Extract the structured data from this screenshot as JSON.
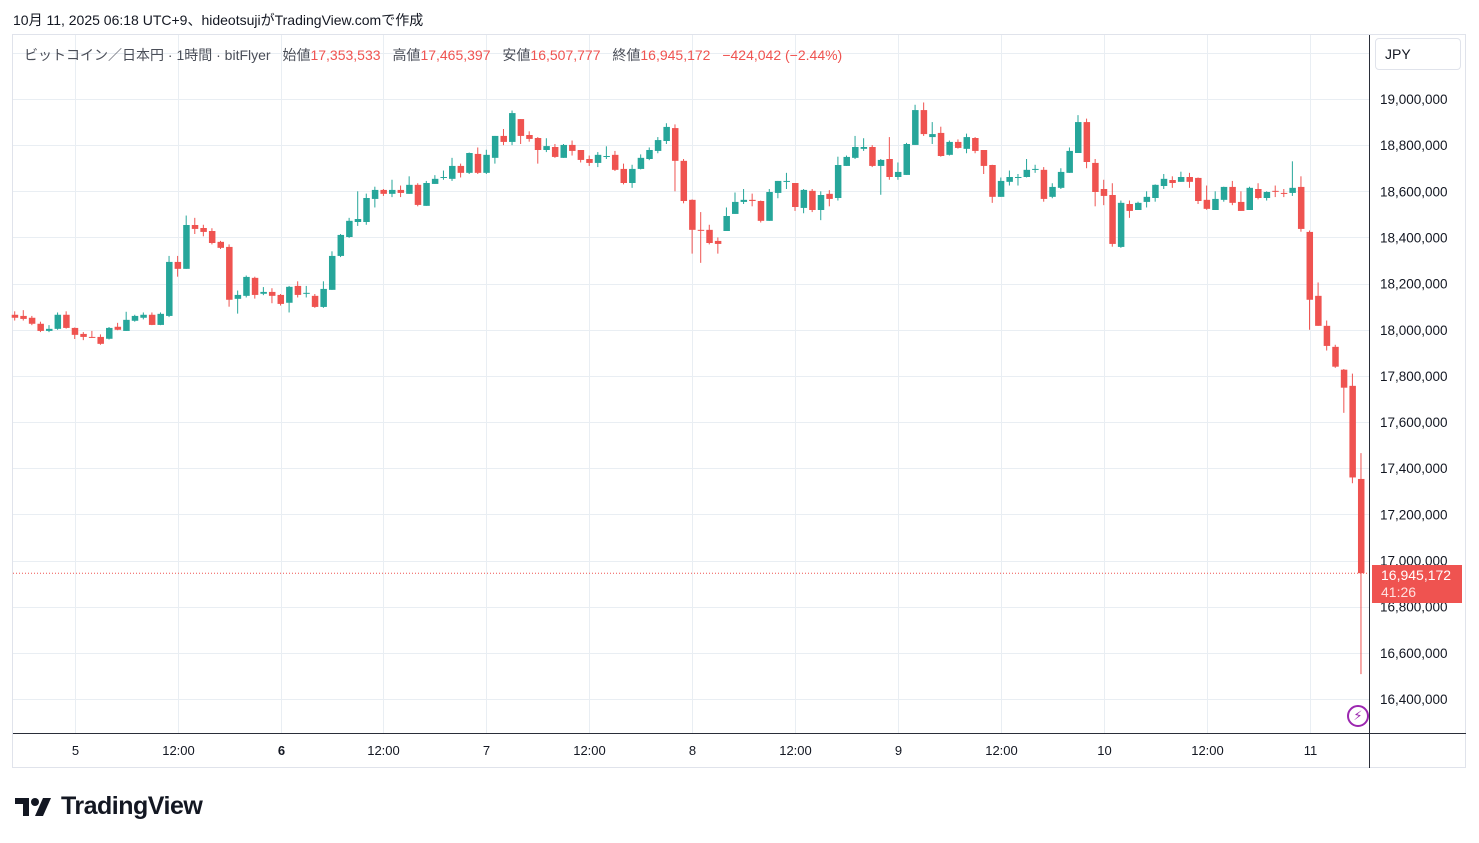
{
  "caption": "10月 11, 2025 06:18 UTC+9、hideotsujiがTradingView.comで作成",
  "legend": {
    "symbol": "ビットコイン／日本円 · 1時間 · bitFlyer",
    "open_label": "始値",
    "open": "17,353,533",
    "high_label": "高値",
    "high": "17,465,397",
    "low_label": "安値",
    "low": "16,507,777",
    "close_label": "終値",
    "close": "16,945,172",
    "change": "−424,042 (−2.44%)"
  },
  "currency": "JPY",
  "last_price": {
    "price": "16,945,172",
    "countdown": "41:26"
  },
  "brand": "TradingView",
  "icons": {
    "alert": "lightning-icon",
    "logo": "tradingview-logo-icon"
  },
  "colors": {
    "up": "#26a69a",
    "down": "#ef5350",
    "grid": "#e9eef3",
    "alert": "#9c27b0"
  },
  "chart_data": {
    "type": "candlestick",
    "title": "ビットコイン／日本円 · 1時間 · bitFlyer",
    "interval": "1h",
    "price_unit": "thousand JPY",
    "ylim": [
      16270,
      19200
    ],
    "last_close": 16945.172,
    "yaxis_ticks": [
      {
        "value": 19000,
        "label": "19,000,000"
      },
      {
        "value": 18800,
        "label": "18,800,000"
      },
      {
        "value": 18600,
        "label": "18,600,000"
      },
      {
        "value": 18400,
        "label": "18,400,000"
      },
      {
        "value": 18200,
        "label": "18,200,000"
      },
      {
        "value": 18000,
        "label": "18,000,000"
      },
      {
        "value": 17800,
        "label": "17,800,000"
      },
      {
        "value": 17600,
        "label": "17,600,000"
      },
      {
        "value": 17400,
        "label": "17,400,000"
      },
      {
        "value": 17200,
        "label": "17,200,000"
      },
      {
        "value": 17000,
        "label": "17,000,000"
      },
      {
        "value": 16800,
        "label": "16,800,000"
      },
      {
        "value": 16600,
        "label": "16,600,000"
      },
      {
        "value": 16400,
        "label": "16,400,000"
      }
    ],
    "xaxis_ticks": [
      {
        "hour_index": 7,
        "label": "5",
        "bold": false
      },
      {
        "hour_index": 19,
        "label": "12:00",
        "bold": false
      },
      {
        "hour_index": 31,
        "label": "6",
        "bold": true
      },
      {
        "hour_index": 43,
        "label": "12:00",
        "bold": false
      },
      {
        "hour_index": 55,
        "label": "7",
        "bold": false
      },
      {
        "hour_index": 67,
        "label": "12:00",
        "bold": false
      },
      {
        "hour_index": 79,
        "label": "8",
        "bold": false
      },
      {
        "hour_index": 91,
        "label": "12:00",
        "bold": false
      },
      {
        "hour_index": 103,
        "label": "9",
        "bold": false
      },
      {
        "hour_index": 115,
        "label": "12:00",
        "bold": false
      },
      {
        "hour_index": 127,
        "label": "10",
        "bold": false
      },
      {
        "hour_index": 139,
        "label": "12:00",
        "bold": false
      },
      {
        "hour_index": 151,
        "label": "11",
        "bold": false
      }
    ],
    "ohlc_fields": [
      "open",
      "high",
      "low",
      "close"
    ],
    "ohlc": [
      [
        18065,
        18080,
        18040,
        18052
      ],
      [
        18060,
        18085,
        18040,
        18047
      ],
      [
        18052,
        18060,
        18020,
        18026
      ],
      [
        18026,
        18035,
        17990,
        17995
      ],
      [
        17995,
        18020,
        17990,
        18004
      ],
      [
        18004,
        18075,
        18000,
        18065
      ],
      [
        18065,
        18080,
        18005,
        18008
      ],
      [
        18008,
        18010,
        17960,
        17978
      ],
      [
        17982,
        17990,
        17955,
        17969
      ],
      [
        17969,
        17995,
        17965,
        17965
      ],
      [
        17969,
        17980,
        17935,
        17939
      ],
      [
        17961,
        18012,
        17958,
        18008
      ],
      [
        18013,
        18030,
        17998,
        18000
      ],
      [
        17995,
        18078,
        17995,
        18043
      ],
      [
        18039,
        18065,
        18035,
        18060
      ],
      [
        18052,
        18075,
        18045,
        18065
      ],
      [
        18065,
        18075,
        18020,
        18021
      ],
      [
        18021,
        18075,
        18020,
        18069
      ],
      [
        18060,
        18320,
        18055,
        18294
      ],
      [
        18294,
        18320,
        18230,
        18264
      ],
      [
        18264,
        18495,
        18264,
        18454
      ],
      [
        18454,
        18485,
        18415,
        18437
      ],
      [
        18441,
        18455,
        18405,
        18424
      ],
      [
        18428,
        18440,
        18370,
        18376
      ],
      [
        18381,
        18385,
        18350,
        18355
      ],
      [
        18359,
        18370,
        18100,
        18130
      ],
      [
        18134,
        18170,
        18070,
        18151
      ],
      [
        18147,
        18235,
        18140,
        18229
      ],
      [
        18225,
        18230,
        18135,
        18151
      ],
      [
        18156,
        18185,
        18150,
        18164
      ],
      [
        18164,
        18180,
        18115,
        18147
      ],
      [
        18151,
        18155,
        18105,
        18112
      ],
      [
        18117,
        18190,
        18075,
        18186
      ],
      [
        18190,
        18210,
        18140,
        18151
      ],
      [
        18160,
        18190,
        18140,
        18160
      ],
      [
        18147,
        18155,
        18095,
        18099
      ],
      [
        18099,
        18210,
        18095,
        18177
      ],
      [
        18173,
        18340,
        18173,
        18320
      ],
      [
        18320,
        18415,
        18315,
        18411
      ],
      [
        18402,
        18485,
        18398,
        18472
      ],
      [
        18467,
        18600,
        18450,
        18480
      ],
      [
        18467,
        18590,
        18455,
        18571
      ],
      [
        18567,
        18620,
        18530,
        18606
      ],
      [
        18606,
        18610,
        18580,
        18589
      ],
      [
        18589,
        18650,
        18575,
        18606
      ],
      [
        18606,
        18625,
        18575,
        18593
      ],
      [
        18589,
        18665,
        18589,
        18628
      ],
      [
        18628,
        18635,
        18535,
        18541
      ],
      [
        18537,
        18645,
        18537,
        18636
      ],
      [
        18632,
        18670,
        18632,
        18654
      ],
      [
        18662,
        18690,
        18650,
        18662
      ],
      [
        18654,
        18745,
        18645,
        18710
      ],
      [
        18710,
        18720,
        18660,
        18680
      ],
      [
        18680,
        18768,
        18675,
        18766
      ],
      [
        18762,
        18790,
        18675,
        18680
      ],
      [
        18680,
        18780,
        18675,
        18758
      ],
      [
        18745,
        18840,
        18720,
        18840
      ],
      [
        18840,
        18870,
        18800,
        18814
      ],
      [
        18814,
        18950,
        18800,
        18939
      ],
      [
        18913,
        18913,
        18805,
        18840
      ],
      [
        18844,
        18860,
        18815,
        18827
      ],
      [
        18831,
        18835,
        18720,
        18779
      ],
      [
        18779,
        18830,
        18770,
        18796
      ],
      [
        18792,
        18805,
        18745,
        18749
      ],
      [
        18745,
        18805,
        18745,
        18801
      ],
      [
        18801,
        18820,
        18755,
        18775
      ],
      [
        18779,
        18779,
        18725,
        18736
      ],
      [
        18740,
        18755,
        18710,
        18723
      ],
      [
        18723,
        18770,
        18705,
        18758
      ],
      [
        18753,
        18795,
        18740,
        18753
      ],
      [
        18758,
        18775,
        18688,
        18693
      ],
      [
        18697,
        18720,
        18630,
        18636
      ],
      [
        18636,
        18715,
        18615,
        18697
      ],
      [
        18697,
        18760,
        18695,
        18745
      ],
      [
        18740,
        18790,
        18735,
        18779
      ],
      [
        18775,
        18835,
        18765,
        18822
      ],
      [
        18818,
        18895,
        18805,
        18879
      ],
      [
        18874,
        18890,
        18600,
        18732
      ],
      [
        18732,
        18740,
        18548,
        18558
      ],
      [
        18563,
        18565,
        18330,
        18433
      ],
      [
        18433,
        18510,
        18290,
        18430
      ],
      [
        18433,
        18455,
        18370,
        18376
      ],
      [
        18385,
        18400,
        18330,
        18372
      ],
      [
        18428,
        18530,
        18428,
        18493
      ],
      [
        18502,
        18595,
        18502,
        18554
      ],
      [
        18554,
        18610,
        18545,
        18563
      ],
      [
        18563,
        18590,
        18535,
        18558
      ],
      [
        18558,
        18560,
        18465,
        18472
      ],
      [
        18472,
        18610,
        18472,
        18597
      ],
      [
        18593,
        18645,
        18570,
        18645
      ],
      [
        18645,
        18680,
        18610,
        18645
      ],
      [
        18636,
        18636,
        18515,
        18532
      ],
      [
        18528,
        18610,
        18505,
        18606
      ],
      [
        18602,
        18610,
        18510,
        18519
      ],
      [
        18519,
        18600,
        18475,
        18584
      ],
      [
        18589,
        18605,
        18535,
        18567
      ],
      [
        18571,
        18750,
        18560,
        18714
      ],
      [
        18710,
        18755,
        18710,
        18749
      ],
      [
        18745,
        18840,
        18740,
        18792
      ],
      [
        18784,
        18830,
        18775,
        18792
      ],
      [
        18792,
        18800,
        18705,
        18710
      ],
      [
        18710,
        18740,
        18585,
        18736
      ],
      [
        18740,
        18835,
        18650,
        18662
      ],
      [
        18662,
        18725,
        18650,
        18684
      ],
      [
        18671,
        18810,
        18671,
        18805
      ],
      [
        18801,
        18975,
        18801,
        18952
      ],
      [
        18952,
        18985,
        18840,
        18848
      ],
      [
        18835,
        18900,
        18805,
        18848
      ],
      [
        18853,
        18880,
        18750,
        18753
      ],
      [
        18758,
        18820,
        18755,
        18814
      ],
      [
        18814,
        18825,
        18785,
        18788
      ],
      [
        18784,
        18850,
        18765,
        18835
      ],
      [
        18831,
        18835,
        18765,
        18775
      ],
      [
        18779,
        18779,
        18675,
        18710
      ],
      [
        18714,
        18715,
        18550,
        18576
      ],
      [
        18576,
        18660,
        18576,
        18645
      ],
      [
        18641,
        18690,
        18625,
        18662
      ],
      [
        18658,
        18675,
        18625,
        18662
      ],
      [
        18662,
        18740,
        18660,
        18693
      ],
      [
        18697,
        18715,
        18680,
        18697
      ],
      [
        18693,
        18705,
        18555,
        18567
      ],
      [
        18576,
        18635,
        18570,
        18619
      ],
      [
        18615,
        18700,
        18610,
        18684
      ],
      [
        18680,
        18790,
        18680,
        18775
      ],
      [
        18766,
        18930,
        18766,
        18900
      ],
      [
        18900,
        18915,
        18700,
        18727
      ],
      [
        18723,
        18740,
        18535,
        18597
      ],
      [
        18610,
        18650,
        18540,
        18580
      ],
      [
        18584,
        18635,
        18360,
        18372
      ],
      [
        18359,
        18560,
        18355,
        18550
      ],
      [
        18545,
        18560,
        18485,
        18515
      ],
      [
        18519,
        18555,
        18519,
        18550
      ],
      [
        18554,
        18600,
        18530,
        18576
      ],
      [
        18571,
        18630,
        18555,
        18628
      ],
      [
        18623,
        18675,
        18610,
        18654
      ],
      [
        18649,
        18665,
        18615,
        18636
      ],
      [
        18641,
        18685,
        18641,
        18662
      ],
      [
        18662,
        18680,
        18615,
        18641
      ],
      [
        18658,
        18660,
        18545,
        18558
      ],
      [
        18563,
        18625,
        18520,
        18524
      ],
      [
        18519,
        18600,
        18519,
        18567
      ],
      [
        18563,
        18620,
        18555,
        18619
      ],
      [
        18619,
        18645,
        18540,
        18550
      ],
      [
        18554,
        18600,
        18515,
        18515
      ],
      [
        18519,
        18620,
        18519,
        18615
      ],
      [
        18610,
        18635,
        18565,
        18571
      ],
      [
        18571,
        18600,
        18560,
        18597
      ],
      [
        18602,
        18625,
        18575,
        18600
      ],
      [
        18593,
        18610,
        18575,
        18590
      ],
      [
        18593,
        18730,
        18580,
        18615
      ],
      [
        18619,
        18665,
        18425,
        18437
      ],
      [
        18424,
        18430,
        18000,
        18130
      ],
      [
        18147,
        18205,
        18017,
        18017
      ],
      [
        18017,
        18040,
        17910,
        17930
      ],
      [
        17926,
        17935,
        17835,
        17840
      ],
      [
        17827,
        17830,
        17640,
        17749
      ],
      [
        17757,
        17810,
        17335,
        17360
      ],
      [
        17353.533,
        17465.397,
        16507.777,
        16945.172
      ]
    ]
  }
}
